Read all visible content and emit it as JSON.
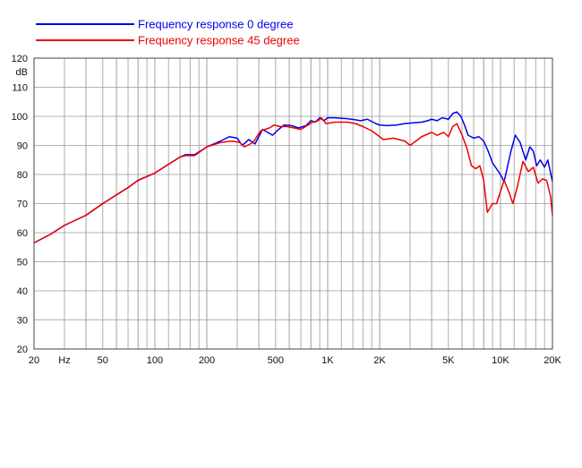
{
  "chart_data": {
    "type": "line",
    "x_scale": "log",
    "xlim": [
      20,
      20000
    ],
    "ylim": [
      20,
      120
    ],
    "y_unit_label": "dB",
    "x_unit_label": "Hz",
    "grid": true,
    "legend_position": "top-left",
    "x_ticks": [
      {
        "value": 20,
        "label": "20"
      },
      {
        "value": 30,
        "label": "Hz"
      },
      {
        "value": 50,
        "label": "50"
      },
      {
        "value": 100,
        "label": "100"
      },
      {
        "value": 200,
        "label": "200"
      },
      {
        "value": 500,
        "label": "500"
      },
      {
        "value": 1000,
        "label": "1K"
      },
      {
        "value": 2000,
        "label": "2K"
      },
      {
        "value": 5000,
        "label": "5K"
      },
      {
        "value": 10000,
        "label": "10K"
      },
      {
        "value": 20000,
        "label": "20K"
      }
    ],
    "y_ticks": [
      20,
      30,
      40,
      50,
      60,
      70,
      80,
      90,
      100,
      110,
      120
    ],
    "series": [
      {
        "name": "Frequency response 0 degree",
        "color": "#0000ee",
        "points": [
          [
            20,
            56.5
          ],
          [
            25,
            59.5
          ],
          [
            30,
            62.5
          ],
          [
            40,
            66
          ],
          [
            50,
            70
          ],
          [
            60,
            73
          ],
          [
            70,
            75.5
          ],
          [
            80,
            78
          ],
          [
            100,
            80.5
          ],
          [
            120,
            83.5
          ],
          [
            140,
            86
          ],
          [
            150,
            86.8
          ],
          [
            170,
            86.8
          ],
          [
            200,
            89.5
          ],
          [
            240,
            91.5
          ],
          [
            270,
            93
          ],
          [
            300,
            92.5
          ],
          [
            320,
            90
          ],
          [
            350,
            92
          ],
          [
            380,
            90.5
          ],
          [
            420,
            95.5
          ],
          [
            450,
            94.5
          ],
          [
            480,
            93.5
          ],
          [
            520,
            95.5
          ],
          [
            560,
            97
          ],
          [
            620,
            96.8
          ],
          [
            680,
            96
          ],
          [
            750,
            96.8
          ],
          [
            800,
            98.5
          ],
          [
            850,
            98
          ],
          [
            900,
            99.5
          ],
          [
            950,
            98.5
          ],
          [
            1000,
            99.5
          ],
          [
            1100,
            99.5
          ],
          [
            1300,
            99.2
          ],
          [
            1450,
            98.8
          ],
          [
            1550,
            98.5
          ],
          [
            1700,
            99
          ],
          [
            1900,
            97.5
          ],
          [
            2000,
            97
          ],
          [
            2200,
            96.8
          ],
          [
            2500,
            97
          ],
          [
            2800,
            97.5
          ],
          [
            3200,
            97.8
          ],
          [
            3500,
            98
          ],
          [
            3800,
            98.5
          ],
          [
            4000,
            99
          ],
          [
            4300,
            98.5
          ],
          [
            4600,
            99.5
          ],
          [
            5000,
            99
          ],
          [
            5300,
            101
          ],
          [
            5600,
            101.5
          ],
          [
            5900,
            100
          ],
          [
            6200,
            97
          ],
          [
            6500,
            93.5
          ],
          [
            7000,
            92.5
          ],
          [
            7500,
            93
          ],
          [
            8000,
            91.5
          ],
          [
            8500,
            88
          ],
          [
            9000,
            84
          ],
          [
            10000,
            80
          ],
          [
            10500,
            77.5
          ],
          [
            11500,
            88
          ],
          [
            12200,
            93.5
          ],
          [
            13000,
            91
          ],
          [
            14000,
            85
          ],
          [
            14800,
            89.5
          ],
          [
            15500,
            88
          ],
          [
            16200,
            83
          ],
          [
            17000,
            85
          ],
          [
            18000,
            82.5
          ],
          [
            18800,
            85
          ],
          [
            20000,
            77.5
          ]
        ]
      },
      {
        "name": "Frequency response 45 degree",
        "color": "#ee0000",
        "points": [
          [
            20,
            56.5
          ],
          [
            25,
            59.5
          ],
          [
            30,
            62.5
          ],
          [
            40,
            66
          ],
          [
            50,
            70
          ],
          [
            60,
            73
          ],
          [
            70,
            75.5
          ],
          [
            80,
            78
          ],
          [
            100,
            80.5
          ],
          [
            120,
            83.5
          ],
          [
            140,
            86
          ],
          [
            150,
            86.5
          ],
          [
            170,
            86.5
          ],
          [
            200,
            89.5
          ],
          [
            240,
            91
          ],
          [
            280,
            91.5
          ],
          [
            310,
            91
          ],
          [
            330,
            89.5
          ],
          [
            370,
            91
          ],
          [
            410,
            95
          ],
          [
            460,
            96
          ],
          [
            490,
            97
          ],
          [
            530,
            96.5
          ],
          [
            580,
            96.5
          ],
          [
            640,
            96
          ],
          [
            700,
            95.5
          ],
          [
            760,
            96.8
          ],
          [
            820,
            98
          ],
          [
            880,
            98.5
          ],
          [
            920,
            99.5
          ],
          [
            980,
            97.5
          ],
          [
            1100,
            98
          ],
          [
            1300,
            98
          ],
          [
            1450,
            97.5
          ],
          [
            1600,
            96.5
          ],
          [
            1800,
            95
          ],
          [
            1900,
            94
          ],
          [
            2000,
            93
          ],
          [
            2100,
            92
          ],
          [
            2400,
            92.5
          ],
          [
            2800,
            91.5
          ],
          [
            3000,
            90
          ],
          [
            3500,
            93
          ],
          [
            4000,
            94.5
          ],
          [
            4300,
            93.5
          ],
          [
            4700,
            94.5
          ],
          [
            5000,
            93
          ],
          [
            5300,
            96.5
          ],
          [
            5600,
            97.5
          ],
          [
            6000,
            93.5
          ],
          [
            6400,
            89
          ],
          [
            6800,
            83
          ],
          [
            7200,
            82
          ],
          [
            7600,
            83
          ],
          [
            8000,
            78
          ],
          [
            8400,
            67
          ],
          [
            9000,
            70
          ],
          [
            9500,
            70
          ],
          [
            10500,
            78
          ],
          [
            11200,
            74
          ],
          [
            11800,
            70
          ],
          [
            12500,
            75.5
          ],
          [
            13500,
            84.5
          ],
          [
            14500,
            81
          ],
          [
            15500,
            82.5
          ],
          [
            16500,
            77
          ],
          [
            17500,
            78.5
          ],
          [
            18500,
            78
          ],
          [
            19500,
            72.5
          ],
          [
            20000,
            66
          ]
        ]
      }
    ]
  }
}
